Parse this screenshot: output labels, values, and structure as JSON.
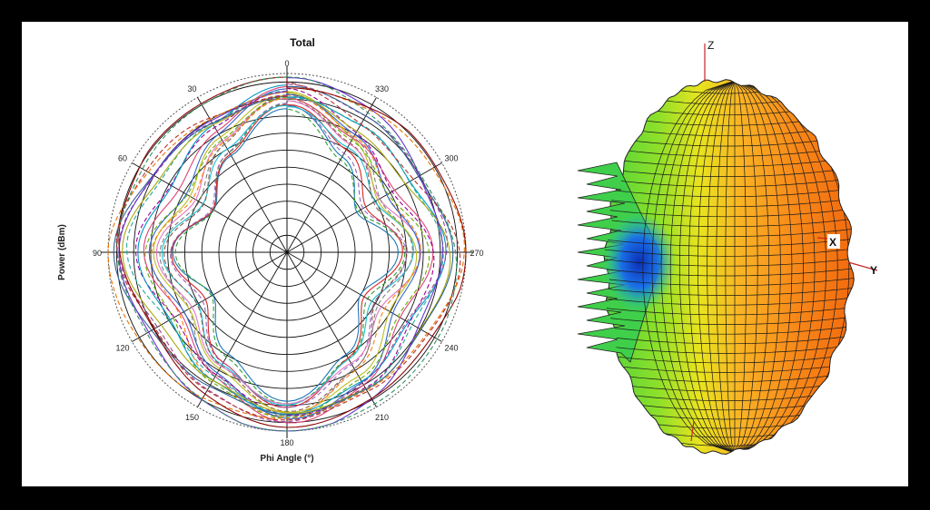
{
  "chart_data": [
    {
      "type": "polar",
      "title": "Total",
      "xlabel": "Phi Angle (°)",
      "ylabel": "Power (dBm)",
      "angle_ticks": [
        "0",
        "30",
        "60",
        "90",
        "120",
        "150",
        "180",
        "210",
        "240",
        "270",
        "300",
        "330"
      ],
      "angle_direction": "counterclockwise",
      "zero_location": "top",
      "rings": 10,
      "grid": true,
      "series_style": {
        "count": 24,
        "line_styles": [
          "solid",
          "dashed"
        ]
      },
      "series_colors": [
        "#1f77b4",
        "#2ca02c",
        "#d62728",
        "#9467bd",
        "#17becf",
        "#8c564b",
        "#e377c2",
        "#7f7f7f",
        "#bcbd22",
        "#ff7f0e",
        "#3366cc",
        "#66aa00",
        "#dd4477",
        "#990099",
        "#0099c6",
        "#22aa99",
        "#aaaa11",
        "#994499",
        "#316395",
        "#b82e2e",
        "#6633cc",
        "#e67300",
        "#8b0707",
        "#329262"
      ],
      "series_shape": {
        "phi_deg": [
          0,
          30,
          60,
          90,
          120,
          150,
          180,
          210,
          240,
          270,
          300,
          330,
          360
        ],
        "relative_radius_min": [
          0.8,
          0.6,
          0.44,
          0.62,
          0.47,
          0.66,
          0.84,
          0.66,
          0.47,
          0.62,
          0.44,
          0.6,
          0.8
        ],
        "relative_radius_max": [
          0.97,
          0.95,
          0.95,
          0.99,
          0.96,
          0.97,
          0.99,
          0.97,
          0.96,
          0.99,
          0.95,
          0.95,
          0.97
        ]
      }
    },
    {
      "type": "3d-radiation-pattern",
      "axis_labels": {
        "z": "Z",
        "x": "X",
        "y": "Y"
      },
      "colormap": [
        "#1a4fd6",
        "#1fa8e0",
        "#22c95a",
        "#9be026",
        "#f2e21d",
        "#f9a320",
        "#f26a0e"
      ]
    }
  ]
}
